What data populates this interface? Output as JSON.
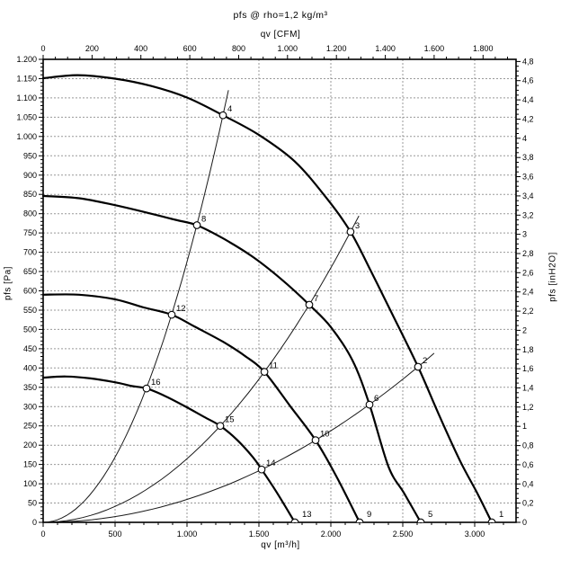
{
  "colors": {
    "foreground": "#000000",
    "background": "#ffffff",
    "grid": "#999999"
  },
  "chart_data": {
    "type": "line",
    "title": "pfs @ rho=1,2 kg/m³",
    "x_axis_bottom": {
      "label": "qv [m³/h]",
      "unit": "m³/h",
      "min": 0,
      "max": 3287,
      "major_ticks": [
        0,
        500,
        1000,
        1500,
        2000,
        2500,
        3000
      ],
      "major_tick_labels": [
        "0",
        "500",
        "1.000",
        "1.500",
        "2.000",
        "2.500",
        "3.000"
      ],
      "minor_step": 100
    },
    "x_axis_top": {
      "label": "qv [CFM]",
      "unit": "CFM",
      "m3h_per_cfm": 1.699,
      "major_ticks": [
        0,
        200,
        400,
        600,
        800,
        1000,
        1200,
        1400,
        1600,
        1800
      ],
      "major_tick_labels": [
        "0",
        "200",
        "400",
        "600",
        "800",
        "1.000",
        "1.200",
        "1.400",
        "1.600",
        "1.800"
      ],
      "minor_step": 50
    },
    "y_axis_left": {
      "label": "pfs [Pa]",
      "unit": "Pa",
      "min": 0,
      "max": 1200,
      "major_step": 50,
      "major_tick_labels": [
        "0",
        "50",
        "100",
        "150",
        "200",
        "250",
        "300",
        "350",
        "400",
        "450",
        "500",
        "550",
        "600",
        "650",
        "700",
        "750",
        "800",
        "850",
        "900",
        "950",
        "1.000",
        "1.050",
        "1.100",
        "1.150",
        "1.200"
      ],
      "minor_step": 10
    },
    "y_axis_right": {
      "label": "pfs [inH2O]",
      "unit": "inH2O",
      "pa_per_unit": 248.84,
      "min": 0,
      "max": 4.8,
      "major_step": 0.2,
      "major_tick_labels": [
        "0",
        "0,2",
        "0,4",
        "0,6",
        "0,8",
        "1",
        "1,2",
        "1,4",
        "1,6",
        "1,8",
        "2",
        "2,2",
        "2,4",
        "2,6",
        "2,8",
        "3",
        "3,2",
        "3,4",
        "3,6",
        "3,8",
        "4",
        "4,2",
        "4,4",
        "4,6",
        "4,8"
      ],
      "minor_step": 0.05
    },
    "grid": {
      "horizontal_step_pa": 50,
      "vertical_step_m3h": 500
    },
    "fan_curves": [
      {
        "name": "speed-curve-1",
        "end_point_label": "1",
        "points": [
          [
            0,
            1151
          ],
          [
            240,
            1159
          ],
          [
            500,
            1150
          ],
          [
            750,
            1131
          ],
          [
            1000,
            1101
          ],
          [
            1250,
            1055
          ],
          [
            1500,
            1004
          ],
          [
            1750,
            935
          ],
          [
            1969,
            841
          ],
          [
            2137,
            753
          ],
          [
            2280,
            650
          ],
          [
            2420,
            545
          ],
          [
            2606,
            403
          ],
          [
            2750,
            280
          ],
          [
            2900,
            158
          ],
          [
            3020,
            74
          ],
          [
            3119,
            0
          ]
        ]
      },
      {
        "name": "speed-curve-2",
        "end_point_label": "5",
        "points": [
          [
            0,
            846
          ],
          [
            250,
            840
          ],
          [
            500,
            822
          ],
          [
            750,
            800
          ],
          [
            920,
            784
          ],
          [
            1069,
            770
          ],
          [
            1250,
            736
          ],
          [
            1450,
            690
          ],
          [
            1650,
            632
          ],
          [
            1850,
            564
          ],
          [
            2000,
            506
          ],
          [
            2150,
            420
          ],
          [
            2269,
            305
          ],
          [
            2400,
            145
          ],
          [
            2510,
            75
          ],
          [
            2625,
            0
          ]
        ]
      },
      {
        "name": "speed-curve-3",
        "end_point_label": "9",
        "points": [
          [
            0,
            590
          ],
          [
            250,
            590
          ],
          [
            500,
            578
          ],
          [
            700,
            557
          ],
          [
            894,
            538
          ],
          [
            1050,
            508
          ],
          [
            1250,
            468
          ],
          [
            1400,
            432
          ],
          [
            1538,
            390
          ],
          [
            1720,
            300
          ],
          [
            1894,
            213
          ],
          [
            2040,
            118
          ],
          [
            2200,
            0
          ]
        ]
      },
      {
        "name": "speed-curve-4",
        "end_point_label": "13",
        "points": [
          [
            0,
            375
          ],
          [
            160,
            378
          ],
          [
            330,
            373
          ],
          [
            500,
            363
          ],
          [
            620,
            353
          ],
          [
            719,
            347
          ],
          [
            850,
            327
          ],
          [
            1000,
            298
          ],
          [
            1120,
            273
          ],
          [
            1231,
            250
          ],
          [
            1350,
            213
          ],
          [
            1460,
            168
          ],
          [
            1519,
            137
          ],
          [
            1620,
            80
          ],
          [
            1750,
            0
          ]
        ]
      }
    ],
    "system_curves": [
      {
        "name": "system-line-A",
        "k": 0.0006752,
        "q_end": 1288,
        "point_labels": [
          "4",
          "8",
          "12",
          "16"
        ]
      },
      {
        "name": "system-line-B",
        "k": 0.00016488,
        "q_end": 2195,
        "point_labels": [
          "3",
          "7",
          "11",
          "15"
        ]
      },
      {
        "name": "system-line-C",
        "k": 5.934e-05,
        "q_end": 2718,
        "point_labels": [
          "2",
          "6",
          "10",
          "14"
        ]
      }
    ],
    "operating_points": [
      {
        "label": "1",
        "q": 3119,
        "p": 0,
        "on_axis": true
      },
      {
        "label": "2",
        "q": 2606,
        "p": 403,
        "on_axis": false
      },
      {
        "label": "3",
        "q": 2137,
        "p": 753,
        "on_axis": false
      },
      {
        "label": "4",
        "q": 1250,
        "p": 1055,
        "on_axis": false
      },
      {
        "label": "5",
        "q": 2625,
        "p": 0,
        "on_axis": true
      },
      {
        "label": "6",
        "q": 2269,
        "p": 305,
        "on_axis": false
      },
      {
        "label": "7",
        "q": 1850,
        "p": 564,
        "on_axis": false
      },
      {
        "label": "8",
        "q": 1069,
        "p": 770,
        "on_axis": false
      },
      {
        "label": "9",
        "q": 2200,
        "p": 0,
        "on_axis": true
      },
      {
        "label": "10",
        "q": 1894,
        "p": 213,
        "on_axis": false
      },
      {
        "label": "11",
        "q": 1538,
        "p": 390,
        "on_axis": false
      },
      {
        "label": "12",
        "q": 894,
        "p": 538,
        "on_axis": false
      },
      {
        "label": "13",
        "q": 1750,
        "p": 0,
        "on_axis": true
      },
      {
        "label": "14",
        "q": 1519,
        "p": 137,
        "on_axis": false
      },
      {
        "label": "15",
        "q": 1231,
        "p": 250,
        "on_axis": false
      },
      {
        "label": "16",
        "q": 719,
        "p": 347,
        "on_axis": false
      }
    ]
  }
}
